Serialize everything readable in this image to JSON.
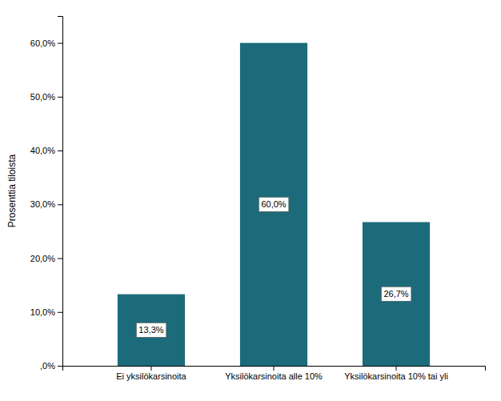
{
  "chart_data": {
    "type": "bar",
    "categories": [
      "Ei yksilökarsinoita",
      "Yksilökarsinoita alle 10%",
      "Yksilökarsinoita 10% tai yli"
    ],
    "values": [
      13.3,
      60.0,
      26.7
    ],
    "value_labels": [
      "13,3%",
      "60,0%",
      "26,7%"
    ],
    "data_labels": true,
    "color": "#1c6b7a",
    "ylabel": "Prosenttia tiloista",
    "ylim": [
      0,
      65
    ],
    "yticks": [
      {
        "value": 0,
        "label": ",0%"
      },
      {
        "value": 10,
        "label": "10,0%"
      },
      {
        "value": 20,
        "label": "20,0%"
      },
      {
        "value": 30,
        "label": "30,0%"
      },
      {
        "value": 40,
        "label": "40,0%"
      },
      {
        "value": 50,
        "label": "50,0%"
      },
      {
        "value": 60,
        "label": "60,0%"
      }
    ],
    "grid": false
  }
}
